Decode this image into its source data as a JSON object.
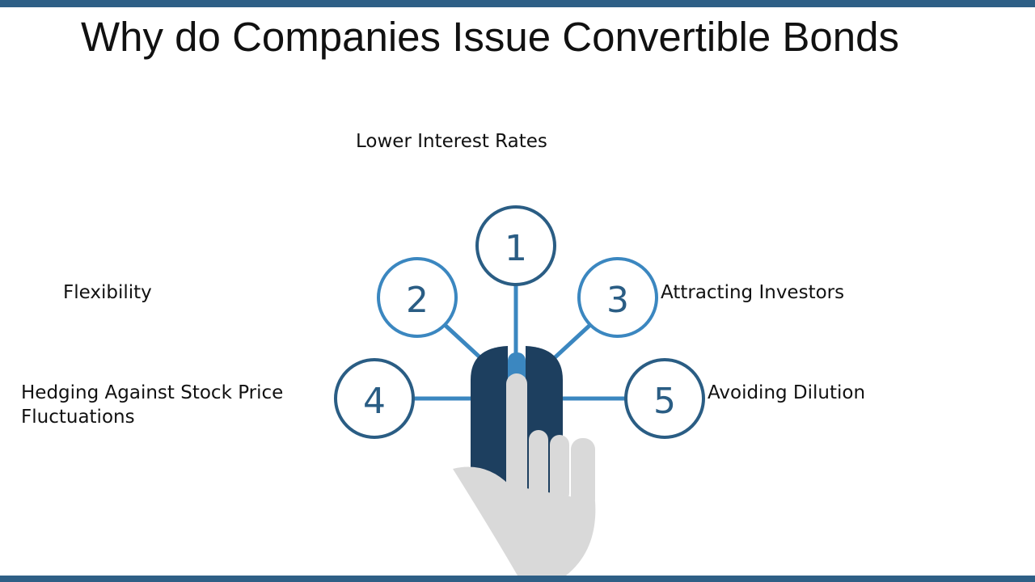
{
  "title": "Why do Companies Issue Convertible Bonds",
  "colors": {
    "bar": "#2e5f86",
    "ring": "#2a5d84",
    "ring_accent": "#3b87c0",
    "mouse": "#1d3f5f",
    "hand": "#d9d9d9"
  },
  "items": [
    {
      "number": "1",
      "label": "Lower Interest Rates"
    },
    {
      "number": "2",
      "label": "Flexibility"
    },
    {
      "number": "3",
      "label": "Attracting Investors"
    },
    {
      "number": "4",
      "label": "Hedging Against Stock Price Fluctuations"
    },
    {
      "number": "5",
      "label": "Avoiding Dilution"
    }
  ],
  "icons": [
    "computer-mouse-icon",
    "pointing-hand-icon"
  ]
}
